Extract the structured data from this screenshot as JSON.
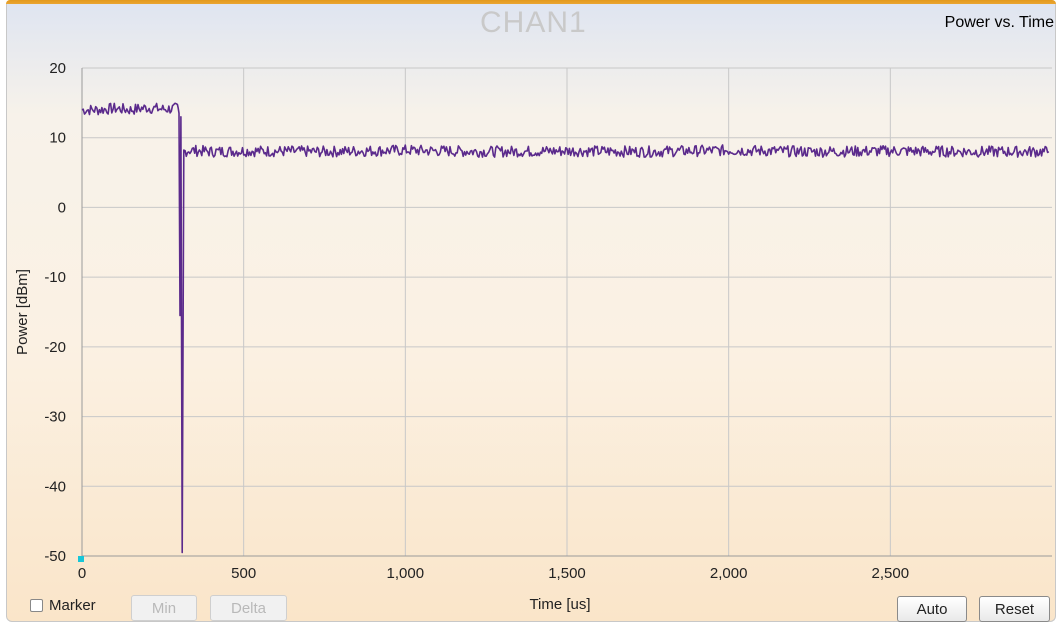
{
  "header": {
    "title": "CHAN1",
    "subtitle": "Power vs. Time"
  },
  "controls": {
    "marker_label": "Marker",
    "marker_checked": false,
    "min_label": "Min",
    "delta_label": "Delta",
    "auto_label": "Auto",
    "reset_label": "Reset"
  },
  "colors": {
    "trace": "#5b2a8c",
    "grid": "#c8c8c8",
    "header_bar": "#e39a1c"
  },
  "chart_data": {
    "type": "line",
    "title": "CHAN1",
    "subtitle": "Power vs. Time",
    "xlabel": "Time [us]",
    "ylabel": "Power [dBm]",
    "xlim": [
      0,
      3000
    ],
    "ylim": [
      -50,
      20
    ],
    "x_ticks": [
      0,
      500,
      1000,
      1500,
      2000,
      2500
    ],
    "x_tick_labels": [
      "0",
      "500",
      "1,000",
      "1,500",
      "2,000",
      "2,500"
    ],
    "y_ticks": [
      20,
      10,
      0,
      -10,
      -20,
      -30,
      -40,
      -50
    ],
    "y_tick_labels": [
      "20",
      "10",
      "0",
      "-10",
      "-20",
      "-30",
      "-40",
      "-50"
    ],
    "grid": true,
    "series": [
      {
        "x": [
          0,
          50,
          100,
          150,
          200,
          250,
          295,
          300,
          303,
          306,
          310,
          315,
          330,
          400,
          500,
          750,
          1000,
          1250,
          1500,
          1750,
          2000,
          2250,
          2500,
          2750,
          2990
        ],
        "y": [
          14,
          14,
          14.2,
          14,
          14.3,
          14.1,
          14.2,
          13.5,
          -15.5,
          13,
          -49.5,
          8,
          8.2,
          8,
          8.1,
          8,
          8.2,
          8,
          8.1,
          8,
          8.2,
          8,
          8.1,
          8,
          8
        ]
      }
    ]
  }
}
